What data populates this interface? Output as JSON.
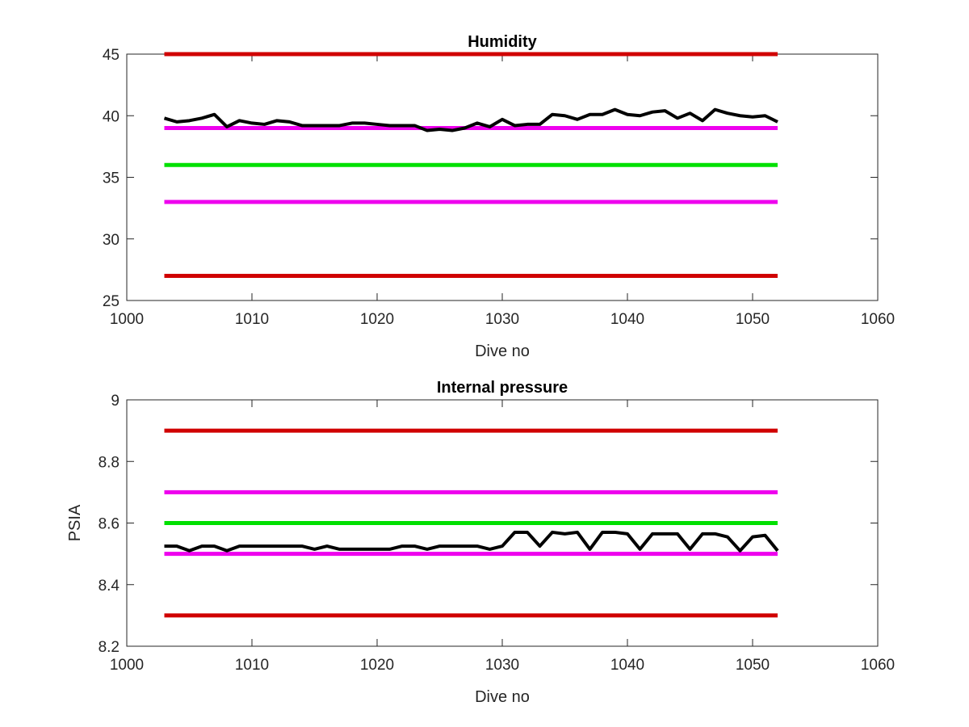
{
  "chart_data": [
    {
      "type": "line",
      "title": "Humidity",
      "xlabel": "Dive no",
      "ylabel": "",
      "xlim": [
        1000,
        1060
      ],
      "ylim": [
        25,
        45
      ],
      "xticks": [
        "1000",
        "1010",
        "1020",
        "1030",
        "1040",
        "1050",
        "1060"
      ],
      "yticks": [
        "25",
        "30",
        "35",
        "40",
        "45"
      ],
      "grid": false,
      "reference_lines": [
        {
          "y": 45,
          "x_range": [
            1003,
            1052
          ],
          "color": "#d00000"
        },
        {
          "y": 39,
          "x_range": [
            1003,
            1052
          ],
          "color": "#ee00ee"
        },
        {
          "y": 36,
          "x_range": [
            1003,
            1052
          ],
          "color": "#00e000"
        },
        {
          "y": 33,
          "x_range": [
            1003,
            1052
          ],
          "color": "#ee00ee"
        },
        {
          "y": 27,
          "x_range": [
            1003,
            1052
          ],
          "color": "#d00000"
        }
      ],
      "series": [
        {
          "color": "#000000",
          "x": [
            1003,
            1004,
            1005,
            1006,
            1007,
            1008,
            1009,
            1010,
            1011,
            1012,
            1013,
            1014,
            1015,
            1016,
            1017,
            1018,
            1019,
            1020,
            1021,
            1022,
            1023,
            1024,
            1025,
            1026,
            1027,
            1028,
            1029,
            1030,
            1031,
            1032,
            1033,
            1034,
            1035,
            1036,
            1037,
            1038,
            1039,
            1040,
            1041,
            1042,
            1043,
            1044,
            1045,
            1046,
            1047,
            1048,
            1049,
            1050,
            1051,
            1052
          ],
          "values": [
            39.8,
            39.5,
            39.6,
            39.8,
            40.1,
            39.1,
            39.6,
            39.4,
            39.3,
            39.6,
            39.5,
            39.2,
            39.2,
            39.2,
            39.2,
            39.4,
            39.4,
            39.3,
            39.2,
            39.2,
            39.2,
            38.8,
            38.9,
            38.8,
            39.0,
            39.4,
            39.1,
            39.7,
            39.2,
            39.3,
            39.3,
            40.1,
            40.0,
            39.7,
            40.1,
            40.1,
            40.5,
            40.1,
            40.0,
            40.3,
            40.4,
            39.8,
            40.2,
            39.6,
            40.5,
            40.2,
            40.0,
            39.9,
            40.0,
            39.5
          ]
        }
      ]
    },
    {
      "type": "line",
      "title": "Internal pressure",
      "xlabel": "Dive no",
      "ylabel": "PSIA",
      "xlim": [
        1000,
        1060
      ],
      "ylim": [
        8.2,
        9.0
      ],
      "xticks": [
        "1000",
        "1010",
        "1020",
        "1030",
        "1040",
        "1050",
        "1060"
      ],
      "yticks": [
        "8.2",
        "8.4",
        "8.6",
        "8.8",
        "9"
      ],
      "grid": false,
      "reference_lines": [
        {
          "y": 8.9,
          "x_range": [
            1003,
            1052
          ],
          "color": "#d00000"
        },
        {
          "y": 8.7,
          "x_range": [
            1003,
            1052
          ],
          "color": "#ee00ee"
        },
        {
          "y": 8.6,
          "x_range": [
            1003,
            1052
          ],
          "color": "#00e000"
        },
        {
          "y": 8.5,
          "x_range": [
            1003,
            1052
          ],
          "color": "#ee00ee"
        },
        {
          "y": 8.3,
          "x_range": [
            1003,
            1052
          ],
          "color": "#d00000"
        }
      ],
      "series": [
        {
          "color": "#000000",
          "x": [
            1003,
            1004,
            1005,
            1006,
            1007,
            1008,
            1009,
            1010,
            1011,
            1012,
            1013,
            1014,
            1015,
            1016,
            1017,
            1018,
            1019,
            1020,
            1021,
            1022,
            1023,
            1024,
            1025,
            1026,
            1027,
            1028,
            1029,
            1030,
            1031,
            1032,
            1033,
            1034,
            1035,
            1036,
            1037,
            1038,
            1039,
            1040,
            1041,
            1042,
            1043,
            1044,
            1045,
            1046,
            1047,
            1048,
            1049,
            1050,
            1051,
            1052
          ],
          "values": [
            8.525,
            8.525,
            8.51,
            8.525,
            8.525,
            8.51,
            8.525,
            8.525,
            8.525,
            8.525,
            8.525,
            8.525,
            8.515,
            8.525,
            8.515,
            8.515,
            8.515,
            8.515,
            8.515,
            8.525,
            8.525,
            8.515,
            8.525,
            8.525,
            8.525,
            8.525,
            8.515,
            8.525,
            8.57,
            8.57,
            8.525,
            8.57,
            8.565,
            8.57,
            8.515,
            8.57,
            8.57,
            8.565,
            8.515,
            8.565,
            8.565,
            8.565,
            8.515,
            8.565,
            8.565,
            8.555,
            8.51,
            8.555,
            8.56,
            8.51
          ]
        }
      ]
    }
  ]
}
